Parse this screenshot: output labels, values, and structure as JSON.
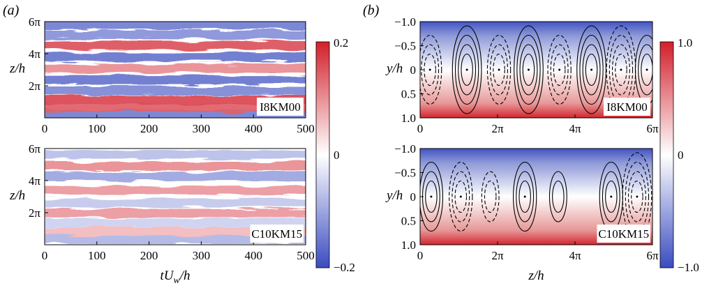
{
  "panel_labels": {
    "a": "(a)",
    "b": "(b)"
  },
  "colors": {
    "negative": "#3b4cc0",
    "zero": "#ffffff",
    "positive": "#d21f2b"
  },
  "chart_data": [
    {
      "type": "heatmap",
      "id": "a-top",
      "case_label": "I8KM00",
      "xlabel": "",
      "ylabel": "z/h",
      "xlim": [
        0,
        500
      ],
      "ylim": [
        0,
        18.85
      ],
      "xticks": [
        0,
        100,
        200,
        300,
        400,
        500
      ],
      "xticklabels": [
        "0",
        "100",
        "200",
        "300",
        "400",
        "500"
      ],
      "yticks": [
        6.283,
        12.566,
        18.85
      ],
      "yticklabels": [
        "2π",
        "4π",
        "6π"
      ],
      "stripes": [
        {
          "z": 0.7,
          "v": -0.14
        },
        {
          "z": 2.0,
          "v": 0.14
        },
        {
          "z": 3.5,
          "v": 0.16
        },
        {
          "z": 5.3,
          "v": -0.13
        },
        {
          "z": 7.4,
          "v": -0.15
        },
        {
          "z": 9.7,
          "v": 0.1
        },
        {
          "z": 11.9,
          "v": -0.15
        },
        {
          "z": 14.2,
          "v": 0.15
        },
        {
          "z": 16.3,
          "v": -0.12
        },
        {
          "z": 18.2,
          "v": -0.14
        }
      ]
    },
    {
      "type": "heatmap",
      "id": "a-bottom",
      "case_label": "C10KM15",
      "xlabel": "tU_w/h",
      "ylabel": "z/h",
      "xlim": [
        0,
        500
      ],
      "ylim": [
        0,
        18.85
      ],
      "xticks": [
        0,
        100,
        200,
        300,
        400,
        500
      ],
      "xticklabels": [
        "0",
        "100",
        "200",
        "300",
        "400",
        "500"
      ],
      "yticks": [
        6.283,
        12.566,
        18.85
      ],
      "yticklabels": [
        "2π",
        "4π",
        "6π"
      ],
      "stripes": [
        {
          "z": 1.0,
          "v": -0.08
        },
        {
          "z": 2.6,
          "v": 0.06
        },
        {
          "z": 4.3,
          "v": -0.05
        },
        {
          "z": 6.2,
          "v": 0.09
        },
        {
          "z": 8.2,
          "v": -0.06
        },
        {
          "z": 10.6,
          "v": 0.09
        },
        {
          "z": 13.4,
          "v": -0.1
        },
        {
          "z": 15.4,
          "v": 0.1
        },
        {
          "z": 17.7,
          "v": -0.07
        }
      ]
    },
    {
      "type": "heatmap",
      "id": "b-top",
      "case_label": "I8KM00",
      "xlabel": "",
      "ylabel": "y/h",
      "xlim": [
        0,
        18.85
      ],
      "ylim": [
        -1.0,
        1.0
      ],
      "xticks": [
        0,
        6.283,
        12.566,
        18.85
      ],
      "xticklabels": [
        "0",
        "2π",
        "4π",
        "6π"
      ],
      "yticks": [
        -1.0,
        -0.5,
        0,
        0.5,
        1.0
      ],
      "yticklabels": [
        "−1.0",
        "−0.5",
        "0",
        "0.5",
        "1.0"
      ],
      "field": "background varies from −1 (blue) at y=−1 to +1 (red) at y=1",
      "vortices": [
        {
          "z": 0.8,
          "sign": -1,
          "n": 3
        },
        {
          "z": 3.8,
          "sign": 1,
          "n": 4
        },
        {
          "z": 6.4,
          "sign": -1,
          "n": 3
        },
        {
          "z": 8.8,
          "sign": 1,
          "n": 4
        },
        {
          "z": 11.3,
          "sign": -1,
          "n": 3
        },
        {
          "z": 13.9,
          "sign": 1,
          "n": 4
        },
        {
          "z": 16.3,
          "sign": -1,
          "n": 4
        },
        {
          "z": 18.4,
          "sign": 1,
          "n": 3
        }
      ]
    },
    {
      "type": "heatmap",
      "id": "b-bottom",
      "case_label": "C10KM15",
      "xlabel": "z/h",
      "ylabel": "y/h",
      "xlim": [
        0,
        18.85
      ],
      "ylim": [
        -1.0,
        1.0
      ],
      "xticks": [
        0,
        6.283,
        12.566,
        18.85
      ],
      "xticklabels": [
        "0",
        "2π",
        "4π",
        "6π"
      ],
      "yticks": [
        -1.0,
        -0.5,
        0,
        0.5,
        1.0
      ],
      "yticklabels": [
        "−1.0",
        "−0.5",
        "0",
        "0.5",
        "1.0"
      ],
      "field": "background varies from −1 (blue) at y=−1 to +1 (red) at y=1",
      "vortices": [
        {
          "z": 0.9,
          "sign": 1,
          "n": 3
        },
        {
          "z": 3.3,
          "sign": -1,
          "n": 3
        },
        {
          "z": 5.7,
          "sign": -1,
          "n": 2
        },
        {
          "z": 8.5,
          "sign": 1,
          "n": 3
        },
        {
          "z": 11.2,
          "sign": 1,
          "n": 2
        },
        {
          "z": 15.5,
          "sign": 1,
          "n": 3
        },
        {
          "z": 17.6,
          "sign": -1,
          "n": 4
        }
      ]
    }
  ],
  "colorbars": [
    {
      "id": "cb-a",
      "min": -0.2,
      "max": 0.2,
      "ticklabels": [
        "0.2",
        "0",
        "−0.2"
      ]
    },
    {
      "id": "cb-b",
      "min": -1.0,
      "max": 1.0,
      "ticklabels": [
        "1.0",
        "0",
        "−1.0"
      ]
    }
  ]
}
